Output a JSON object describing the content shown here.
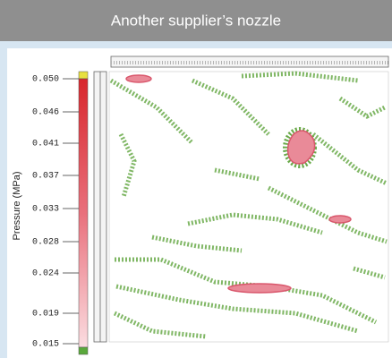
{
  "header": {
    "title": "Another supplier’s nozzle"
  },
  "colorbar": {
    "label": "Pressure (MPa)",
    "ticks": [
      "0.050",
      "0.046",
      "0.041",
      "0.037",
      "0.033",
      "0.028",
      "0.024",
      "0.019",
      "0.015"
    ]
  }
}
